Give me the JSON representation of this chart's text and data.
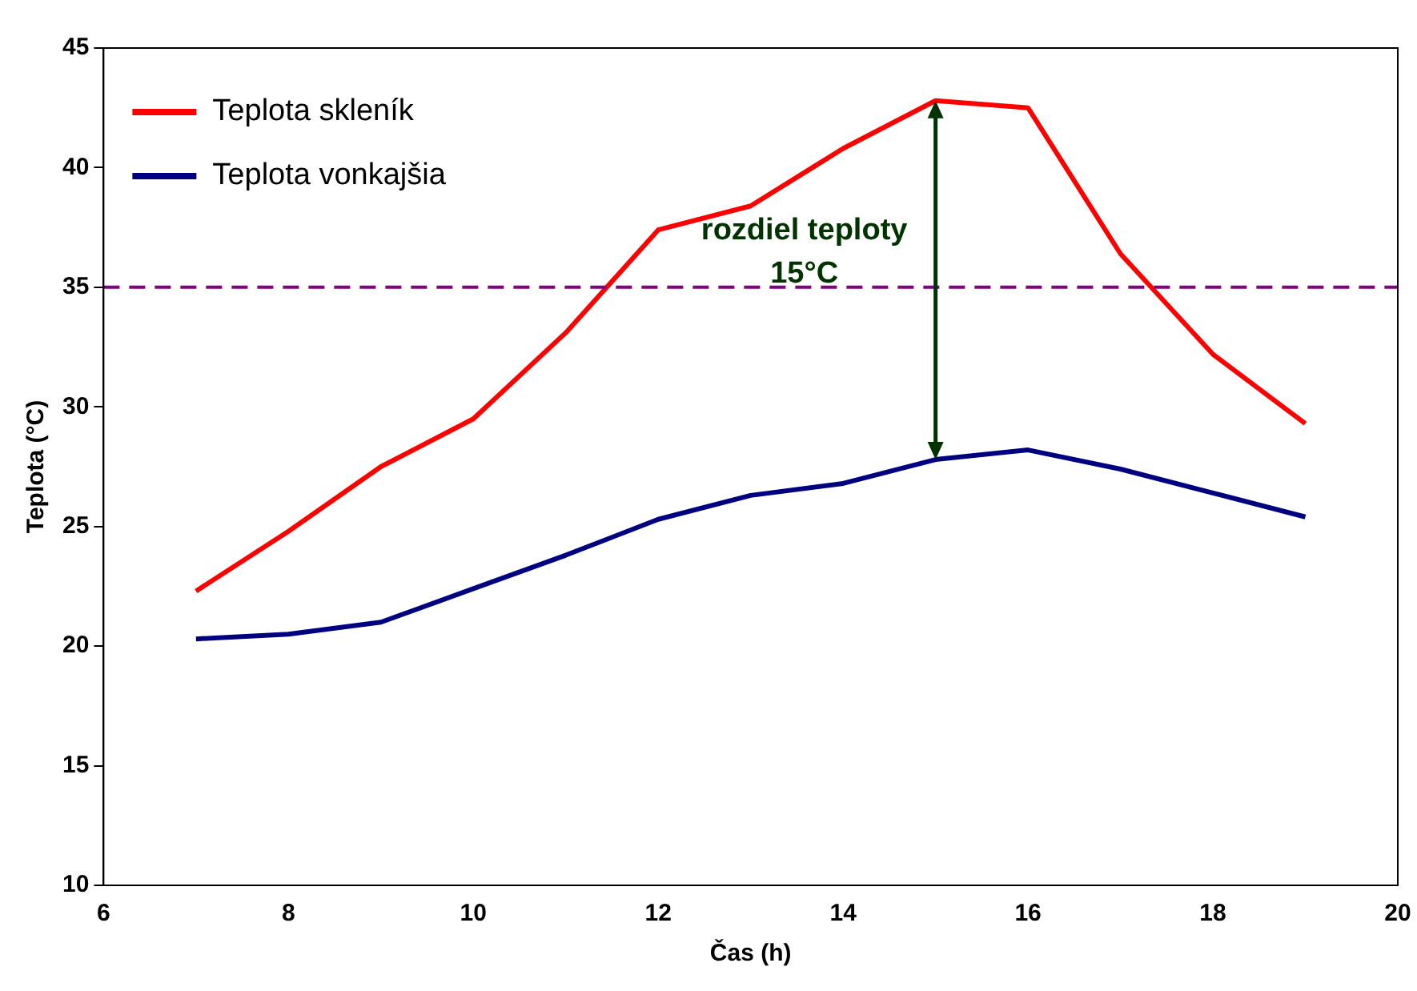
{
  "chart_data": {
    "type": "line",
    "xlabel": "Čas (h)",
    "ylabel": "Teplota (°C)",
    "x": [
      7,
      8,
      9,
      10,
      11,
      12,
      13,
      14,
      15,
      16,
      17,
      18,
      19
    ],
    "series": [
      {
        "name": "Teplota skleník",
        "color": "#ff0000",
        "values": [
          22.3,
          24.8,
          27.5,
          29.5,
          33.1,
          37.4,
          38.4,
          40.8,
          42.8,
          42.5,
          36.4,
          32.2,
          29.3
        ]
      },
      {
        "name": "Teplota vonkajšia",
        "color": "#000080",
        "values": [
          20.3,
          20.5,
          21.0,
          22.4,
          23.8,
          25.3,
          26.3,
          26.8,
          27.8,
          28.2,
          27.4,
          26.4,
          25.4
        ]
      }
    ],
    "xlim": [
      6,
      20
    ],
    "xticks": [
      6,
      8,
      10,
      12,
      14,
      16,
      18,
      20
    ],
    "ylim": [
      10,
      45
    ],
    "yticks": [
      10,
      15,
      20,
      25,
      30,
      35,
      40,
      45
    ],
    "ref_lines": [
      {
        "axis": "y",
        "value": 35,
        "color": "#800080",
        "line_style": "dashed"
      }
    ],
    "annotations": [
      {
        "text": "rozdiel teploty\n15°C",
        "x": 15,
        "y": 35
      }
    ],
    "grid": false,
    "legend": "top left",
    "marker": "none",
    "line_style": "solid"
  }
}
